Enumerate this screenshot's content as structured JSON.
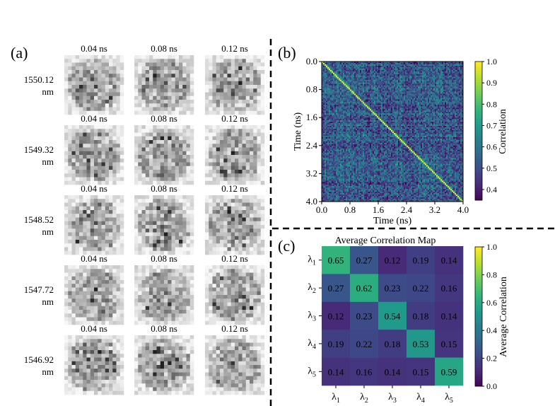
{
  "panel_labels": {
    "a": "(a)",
    "b": "(b)",
    "c": "(c)"
  },
  "chart_data": [
    {
      "type": "image-grid",
      "panel": "(a)",
      "column_labels": [
        "0.04 ns",
        "0.08 ns",
        "0.12 ns"
      ],
      "row_labels": [
        {
          "value": "1550.12",
          "unit": "nm"
        },
        {
          "value": "1549.32",
          "unit": "nm"
        },
        {
          "value": "1548.52",
          "unit": "nm"
        },
        {
          "value": "1547.72",
          "unit": "nm"
        },
        {
          "value": "1546.92",
          "unit": "nm"
        }
      ]
    },
    {
      "type": "heatmap",
      "panel": "(b)",
      "title": "",
      "xlabel": "Time (ns)",
      "ylabel": "Time (ns)",
      "xticks": [
        "0.0",
        "0.8",
        "1.6",
        "2.4",
        "3.2",
        "4.0"
      ],
      "yticks": [
        "0.0",
        "0.8",
        "1.6",
        "2.4",
        "3.2",
        "4.0"
      ],
      "xlim": [
        0,
        4.0
      ],
      "ylim": [
        4.0,
        0
      ],
      "matrix_size": 100,
      "diagonal_value": 1.0,
      "off_diagonal_range": [
        0.35,
        0.8
      ],
      "colorbar": {
        "label": "Correlation",
        "ticks": [
          "0.4",
          "0.5",
          "0.6",
          "0.7",
          "0.8",
          "0.9",
          "1.0"
        ],
        "range": [
          0.35,
          1.0
        ]
      }
    },
    {
      "type": "heatmap",
      "panel": "(c)",
      "title": "Average Correlation Map",
      "xlabel": "",
      "ylabel": "",
      "row_labels": [
        {
          "base": "λ",
          "sub": "1"
        },
        {
          "base": "λ",
          "sub": "2"
        },
        {
          "base": "λ",
          "sub": "3"
        },
        {
          "base": "λ",
          "sub": "4"
        },
        {
          "base": "λ",
          "sub": "5"
        }
      ],
      "col_labels": [
        {
          "base": "λ",
          "sub": "1"
        },
        {
          "base": "λ",
          "sub": "2"
        },
        {
          "base": "λ",
          "sub": "3"
        },
        {
          "base": "λ",
          "sub": "4"
        },
        {
          "base": "λ",
          "sub": "5"
        }
      ],
      "values": [
        [
          0.65,
          0.27,
          0.12,
          0.19,
          0.14
        ],
        [
          0.27,
          0.62,
          0.23,
          0.22,
          0.16
        ],
        [
          0.12,
          0.23,
          0.54,
          0.18,
          0.14
        ],
        [
          0.19,
          0.22,
          0.18,
          0.53,
          0.15
        ],
        [
          0.14,
          0.16,
          0.14,
          0.15,
          0.59
        ]
      ],
      "cell_labels": [
        [
          "0.65",
          "0.27",
          "0.12",
          "0.19",
          "0.14"
        ],
        [
          "0.27",
          "0.62",
          "0.23",
          "0.22",
          "0.16"
        ],
        [
          "0.12",
          "0.23",
          "0.54",
          "0.18",
          "0.14"
        ],
        [
          "0.19",
          "0.22",
          "0.18",
          "0.53",
          "0.15"
        ],
        [
          "0.14",
          "0.16",
          "0.14",
          "0.15",
          "0.59"
        ]
      ],
      "colorbar": {
        "label": "Average Correlation",
        "ticks": [
          "0.0",
          "0.2",
          "0.4",
          "0.6",
          "0.8",
          "1.0"
        ],
        "range": [
          0.0,
          1.0
        ]
      }
    }
  ]
}
